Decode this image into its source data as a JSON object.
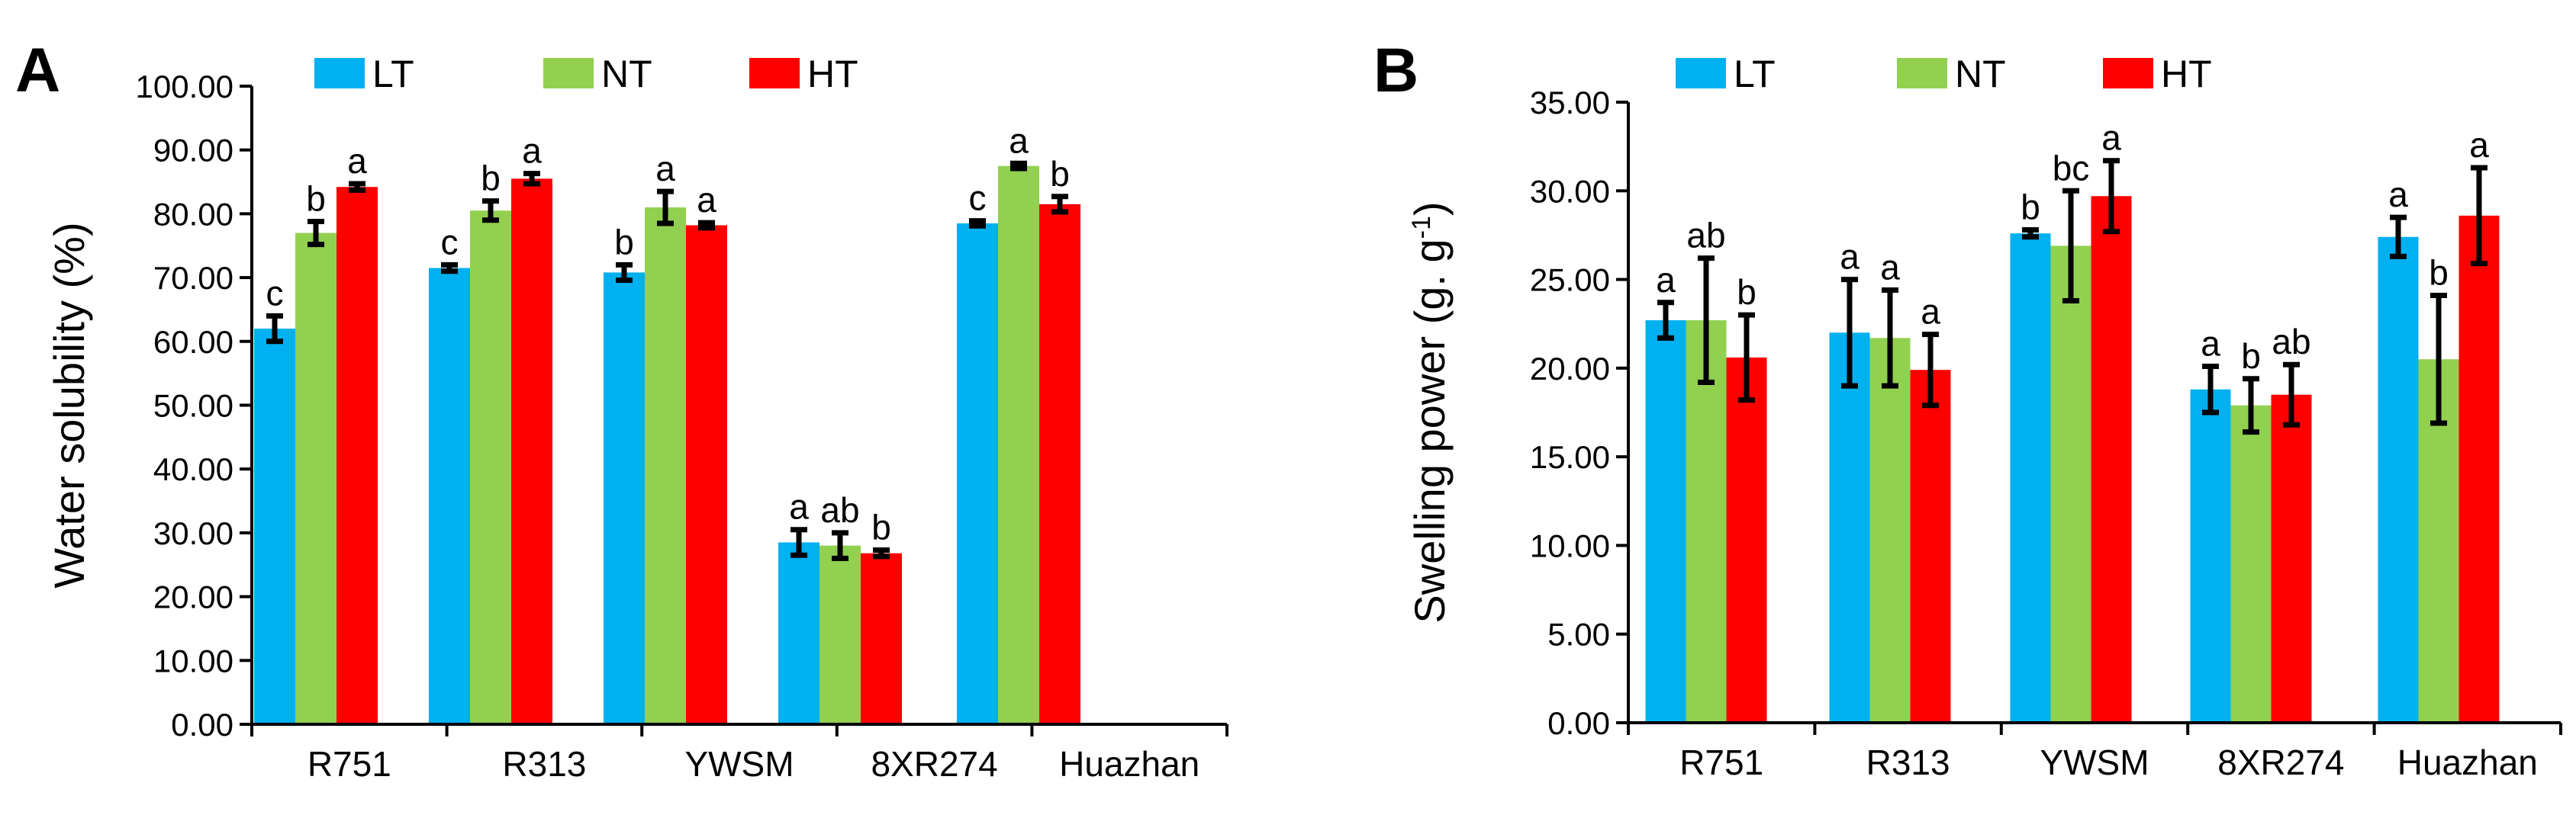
{
  "chart_data": [
    {
      "type": "bar",
      "panel_label": "A",
      "title": "",
      "xlabel": "",
      "ylabel": "Water solubility (%)",
      "ylim": [
        0,
        100
      ],
      "yticks": [
        "0.00",
        "10.00",
        "20.00",
        "30.00",
        "40.00",
        "50.00",
        "60.00",
        "70.00",
        "80.00",
        "90.00",
        "100.00"
      ],
      "categories": [
        "R751",
        "R313",
        "YWSM",
        "8XR274",
        "Huazhan"
      ],
      "legend": [
        "LT",
        "NT",
        "HT"
      ],
      "legend_position": "top",
      "series": [
        {
          "name": "LT",
          "color": "#00b0f0",
          "values": [
            62.0,
            71.5,
            70.8,
            28.5,
            78.5
          ],
          "errors": [
            2.0,
            0.5,
            1.2,
            2.0,
            0.4
          ],
          "labels": [
            "c",
            "c",
            "b",
            "a",
            "c"
          ]
        },
        {
          "name": "NT",
          "color": "#92d050",
          "values": [
            77.0,
            80.5,
            81.0,
            28.0,
            87.5
          ],
          "errors": [
            1.8,
            1.5,
            2.5,
            2.0,
            0.4
          ],
          "labels": [
            "b",
            "b",
            "a",
            "ab",
            "a"
          ]
        },
        {
          "name": "HT",
          "color": "#ff0000",
          "values": [
            84.2,
            85.5,
            78.2,
            26.8,
            81.5
          ],
          "errors": [
            0.5,
            0.8,
            0.4,
            0.5,
            1.2
          ],
          "labels": [
            "a",
            "a",
            "a",
            "b",
            "b"
          ]
        }
      ]
    },
    {
      "type": "bar",
      "panel_label": "B",
      "title": "",
      "xlabel": "",
      "ylabel": "Swelling power (g. g",
      "ylabel_superscript": "-1",
      "ylabel_close": ")",
      "ylim": [
        0,
        35
      ],
      "yticks": [
        "0.00",
        "5.00",
        "10.00",
        "15.00",
        "20.00",
        "25.00",
        "30.00",
        "35.00"
      ],
      "categories": [
        "R751",
        "R313",
        "YWSM",
        "8XR274",
        "Huazhan"
      ],
      "legend": [
        "LT",
        "NT",
        "HT"
      ],
      "legend_position": "top",
      "series": [
        {
          "name": "LT",
          "color": "#00b0f0",
          "values": [
            22.7,
            22.0,
            27.6,
            18.8,
            27.4
          ],
          "errors": [
            1.0,
            3.0,
            0.2,
            1.3,
            1.1
          ],
          "labels": [
            "a",
            "a",
            "b",
            "a",
            "a"
          ]
        },
        {
          "name": "NT",
          "color": "#92d050",
          "values": [
            22.7,
            21.7,
            26.9,
            17.9,
            20.5
          ],
          "errors": [
            3.5,
            2.7,
            3.1,
            1.5,
            3.6
          ],
          "labels": [
            "ab",
            "a",
            "bc",
            "b",
            "b"
          ]
        },
        {
          "name": "HT",
          "color": "#ff0000",
          "values": [
            20.6,
            19.9,
            29.7,
            18.5,
            28.6
          ],
          "errors": [
            2.4,
            2.0,
            2.0,
            1.7,
            2.7
          ],
          "labels": [
            "b",
            "a",
            "a",
            "ab",
            "a"
          ]
        }
      ]
    }
  ]
}
